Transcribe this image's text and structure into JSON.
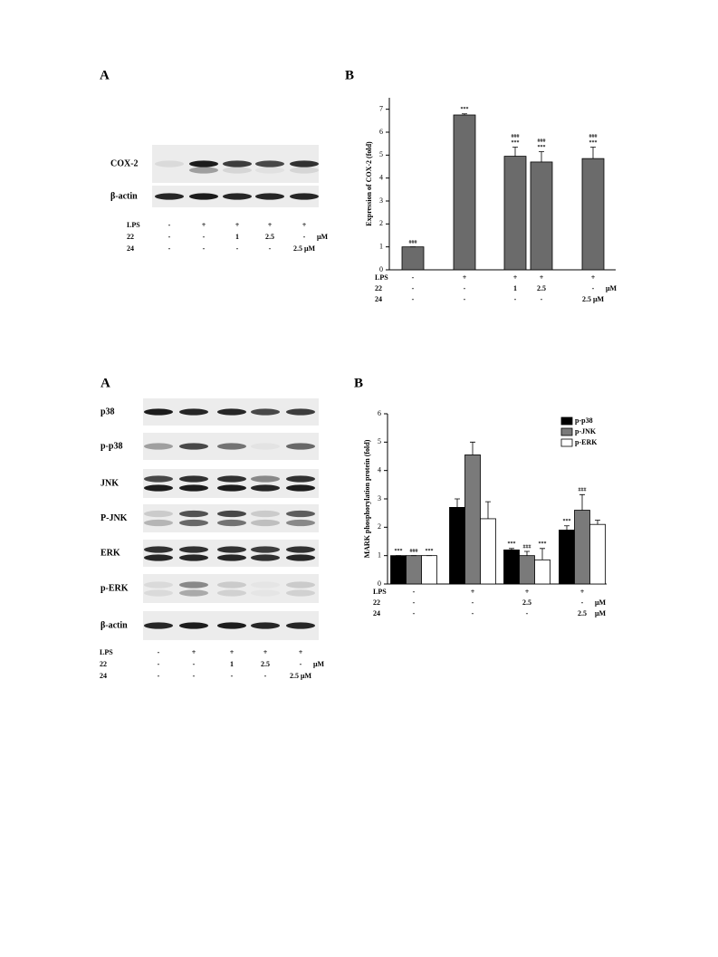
{
  "figure1": {
    "panel_a": {
      "label": "A",
      "blot_rows": [
        "COX-2",
        "β-actin"
      ],
      "treatments": [
        {
          "name": "LPS",
          "cells": [
            "-",
            "+",
            "+",
            "+",
            "+"
          ]
        },
        {
          "name": "22",
          "cells": [
            "-",
            "-",
            "1",
            "2.5",
            "-"
          ],
          "unit": "μM"
        },
        {
          "name": "24",
          "cells": [
            "-",
            "-",
            "-",
            "-",
            "2.5 μM"
          ]
        }
      ]
    },
    "panel_b_label": "B"
  },
  "figure2": {
    "panel_a": {
      "label": "A",
      "blot_rows": [
        "p38",
        "p-p38",
        "JNK",
        "P-JNK",
        "ERK",
        "p-ERK",
        "β-actin"
      ],
      "treatments": [
        {
          "name": "LPS",
          "cells": [
            "-",
            "+",
            "+",
            "+",
            "+"
          ]
        },
        {
          "name": "22",
          "cells": [
            "-",
            "-",
            "1",
            "2.5",
            "-"
          ],
          "unit": "μM"
        },
        {
          "name": "24",
          "cells": [
            "-",
            "-",
            "-",
            "-",
            "2.5 μM"
          ]
        }
      ]
    },
    "panel_b_label": "B"
  },
  "chart_data": [
    {
      "type": "bar",
      "y_label": "Expression of COX-2 (fold)",
      "color": "#6b6b6b",
      "values": [
        1,
        6.75,
        4.95,
        4.7,
        4.85
      ],
      "errors": [
        0,
        0.05,
        0.4,
        0.45,
        0.5
      ],
      "annotations": [
        [
          "###"
        ],
        [
          "***"
        ],
        [
          "###",
          "***"
        ],
        [
          "###",
          "***"
        ],
        [
          "###",
          "***"
        ]
      ],
      "ylim": [
        0,
        7.5
      ],
      "yticks": [
        0,
        1,
        2,
        3,
        4,
        5,
        6,
        7
      ],
      "treatments": [
        {
          "name": "LPS",
          "cells": [
            "-",
            "+",
            "+",
            "+",
            "+"
          ]
        },
        {
          "name": "22",
          "cells": [
            "-",
            "-",
            "1",
            "2.5",
            "-"
          ],
          "unit": "μM"
        },
        {
          "name": "24",
          "cells": [
            "-",
            "-",
            "-",
            "-",
            "2.5 μM"
          ]
        }
      ]
    },
    {
      "type": "bar",
      "y_label": "MARK phosphorylation protein (fold)",
      "legend": "upper right",
      "series": [
        {
          "name": "p-p38",
          "color": "#000000",
          "values": [
            1.0,
            2.7,
            1.2,
            1.9
          ],
          "errors": [
            0,
            0.3,
            0.05,
            0.15
          ],
          "annotations": [
            [
              "***"
            ],
            null,
            [
              "***"
            ],
            [
              "***"
            ]
          ]
        },
        {
          "name": "p-JNK",
          "color": "#7a7a7a",
          "values": [
            1.0,
            4.55,
            1.0,
            2.6
          ],
          "errors": [
            0,
            0.45,
            0.15,
            0.55
          ],
          "annotations": [
            [
              "###"
            ],
            null,
            [
              "###"
            ],
            [
              "###"
            ]
          ]
        },
        {
          "name": "p-ERK",
          "color": "#ffffff",
          "values": [
            1.0,
            2.3,
            0.85,
            2.1
          ],
          "errors": [
            0,
            0.6,
            0.4,
            0.15
          ],
          "annotations": [
            [
              "***"
            ],
            null,
            [
              "***"
            ],
            null
          ]
        }
      ],
      "ylim": [
        0,
        6
      ],
      "yticks": [
        0,
        1,
        2,
        3,
        4,
        5,
        6
      ],
      "treatments": [
        {
          "name": "LPS",
          "cells": [
            "-",
            "+",
            "+",
            "+"
          ]
        },
        {
          "name": "22",
          "cells": [
            "-",
            "-",
            "2.5",
            "-"
          ],
          "unit": "μM"
        },
        {
          "name": "24",
          "cells": [
            "-",
            "-",
            "-",
            "2.5"
          ],
          "unit": "μM"
        }
      ]
    }
  ]
}
